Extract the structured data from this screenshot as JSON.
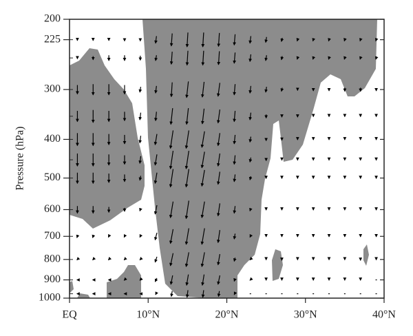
{
  "chart_data": {
    "type": "vector",
    "ylabel": "Pressure (hPa)",
    "xlim": [
      0,
      40
    ],
    "xticks": [
      {
        "value": 0,
        "label": "EQ"
      },
      {
        "value": 10,
        "label": "10°N"
      },
      {
        "value": 20,
        "label": "20°N"
      },
      {
        "value": 30,
        "label": "30°N"
      },
      {
        "value": 40,
        "label": "40°N"
      }
    ],
    "ylim": [
      1000,
      200
    ],
    "ylog": true,
    "yticks": [
      200,
      225,
      300,
      400,
      500,
      600,
      700,
      800,
      900,
      1000
    ],
    "color": "#000000",
    "shade_color": "#8c8c8c",
    "x": [
      1,
      3,
      5,
      7,
      9,
      11,
      13,
      15,
      17,
      19,
      21,
      23,
      25,
      27,
      29,
      31,
      33,
      35,
      37,
      39
    ],
    "vectors": [
      {
        "level": 225,
        "u": [
          0,
          0,
          0,
          0,
          0,
          -1,
          -1,
          -1,
          -1,
          -1,
          -1,
          -1,
          -1,
          -1,
          -1,
          -1,
          -1,
          -1,
          -1,
          -1
        ],
        "v": [
          -2,
          -2,
          -2,
          -3,
          -3,
          -8,
          -14,
          -16,
          -16,
          -15,
          -12,
          -8,
          -6,
          -4,
          -3,
          -3,
          -3,
          -3,
          -3,
          -3
        ]
      },
      {
        "level": 250,
        "u": [
          0,
          0,
          0,
          0,
          0,
          -1,
          -1,
          -1,
          -1,
          -1,
          -1,
          -1,
          -1,
          -1,
          -1,
          -1,
          -1,
          -1,
          -1,
          -1
        ],
        "v": [
          -2,
          -4,
          -6,
          -6,
          -5,
          -6,
          -14,
          -16,
          -16,
          -15,
          -12,
          -8,
          -6,
          -4,
          -3,
          -3,
          -3,
          -3,
          -3,
          -3
        ]
      },
      {
        "level": 300,
        "u": [
          0,
          0,
          0,
          0,
          -1,
          -1,
          -1,
          -2,
          -2,
          -2,
          -1,
          -1,
          -1,
          -1,
          0,
          0,
          0,
          0,
          0,
          0
        ],
        "v": [
          -10,
          -12,
          -12,
          -10,
          -6,
          -8,
          -16,
          -18,
          -17,
          -15,
          -12,
          -8,
          -6,
          -4,
          -2,
          -3,
          -3,
          -4,
          -4,
          -3
        ]
      },
      {
        "level": 350,
        "u": [
          0,
          0,
          0,
          0,
          -1,
          -1,
          -2,
          -2,
          -2,
          -2,
          -1,
          -1,
          0,
          0,
          0,
          0,
          0,
          0,
          0,
          0
        ],
        "v": [
          -12,
          -14,
          -12,
          -10,
          -8,
          -10,
          -18,
          -18,
          -17,
          -15,
          -12,
          -8,
          -4,
          -2,
          -2,
          -1,
          -1,
          -1,
          -1,
          -1
        ]
      },
      {
        "level": 400,
        "u": [
          0,
          0,
          0,
          0,
          -1,
          -2,
          -3,
          -3,
          -3,
          -2,
          -1,
          -1,
          0,
          0,
          0,
          0,
          0,
          0,
          0,
          0
        ],
        "v": [
          -14,
          -14,
          -12,
          -10,
          -8,
          -12,
          -20,
          -20,
          -18,
          -14,
          -10,
          -6,
          -3,
          -2,
          -1,
          -1,
          -1,
          -1,
          -1,
          -1
        ]
      },
      {
        "level": 450,
        "u": [
          0,
          0,
          0,
          0,
          -1,
          -2,
          -3,
          -3,
          -3,
          -2,
          -1,
          -1,
          0,
          0,
          0,
          0,
          0,
          0,
          0,
          0
        ],
        "v": [
          -14,
          -14,
          -12,
          -10,
          -8,
          -12,
          -20,
          -20,
          -18,
          -14,
          -10,
          -5,
          -2,
          -1,
          -1,
          -1,
          -1,
          -1,
          -1,
          -1
        ]
      },
      {
        "level": 500,
        "u": [
          0,
          0,
          0,
          0,
          -1,
          -2,
          -3,
          -3,
          -3,
          -2,
          -1,
          -1,
          0,
          0,
          0,
          0,
          0,
          0,
          0,
          0
        ],
        "v": [
          -12,
          -12,
          -10,
          -8,
          -5,
          -12,
          -20,
          -20,
          -18,
          -14,
          -8,
          -4,
          -1,
          -1,
          -1,
          -1,
          -1,
          -1,
          -1,
          -1
        ]
      },
      {
        "level": 600,
        "u": [
          0,
          0,
          0,
          0,
          -1,
          -2,
          -3,
          -3,
          -3,
          -2,
          -1,
          -1,
          0,
          0,
          0,
          0,
          0,
          0,
          0,
          0
        ],
        "v": [
          -8,
          -8,
          -6,
          -4,
          -3,
          -10,
          -18,
          -20,
          -18,
          -14,
          -8,
          -3,
          -1,
          -1,
          -1,
          -1,
          -1,
          -1,
          -1,
          -1
        ]
      },
      {
        "level": 700,
        "u": [
          -1,
          -1,
          -1,
          -1,
          -1,
          -2,
          -3,
          -3,
          -3,
          -2,
          -1,
          -1,
          0,
          0,
          0,
          0,
          0,
          0,
          0,
          0
        ],
        "v": [
          -3,
          -3,
          -2,
          -2,
          -2,
          -8,
          -16,
          -18,
          -18,
          -14,
          -6,
          -2,
          -1,
          -1,
          -1,
          -1,
          -1,
          -1,
          -1,
          -1
        ]
      },
      {
        "level": 800,
        "u": [
          -1,
          -1,
          -1,
          -1,
          -1,
          -2,
          -3,
          -3,
          -3,
          -2,
          -1,
          -1,
          0,
          0,
          0,
          0,
          0,
          0,
          0,
          0
        ],
        "v": [
          -1,
          -1,
          -1,
          -1,
          -1,
          -6,
          -14,
          -16,
          -16,
          -12,
          -4,
          -1,
          -1,
          -2,
          -1,
          -1,
          -1,
          -1,
          -2,
          -1
        ]
      },
      {
        "level": 900,
        "u": [
          -1,
          -1,
          -1,
          -1,
          -1,
          -2,
          -2,
          -2,
          -2,
          -2,
          -1,
          -1,
          0,
          0,
          0,
          0,
          0,
          0,
          0,
          0
        ],
        "v": [
          0,
          0,
          0,
          -1,
          -1,
          -4,
          -10,
          -12,
          -12,
          -10,
          -3,
          -1,
          -1,
          -1,
          -1,
          -1,
          -1,
          -1,
          -1,
          0
        ]
      },
      {
        "level": 975,
        "u": [
          -1,
          -1,
          -1,
          -1,
          -1,
          -1,
          -1,
          -1,
          -1,
          -1,
          -1,
          0,
          0,
          0,
          0,
          0,
          0,
          0,
          0,
          0
        ],
        "v": [
          0,
          0,
          0,
          0,
          0,
          -2,
          -6,
          -8,
          -8,
          -6,
          -2,
          0,
          0,
          0,
          0,
          0,
          0,
          0,
          0,
          0
        ]
      }
    ]
  }
}
